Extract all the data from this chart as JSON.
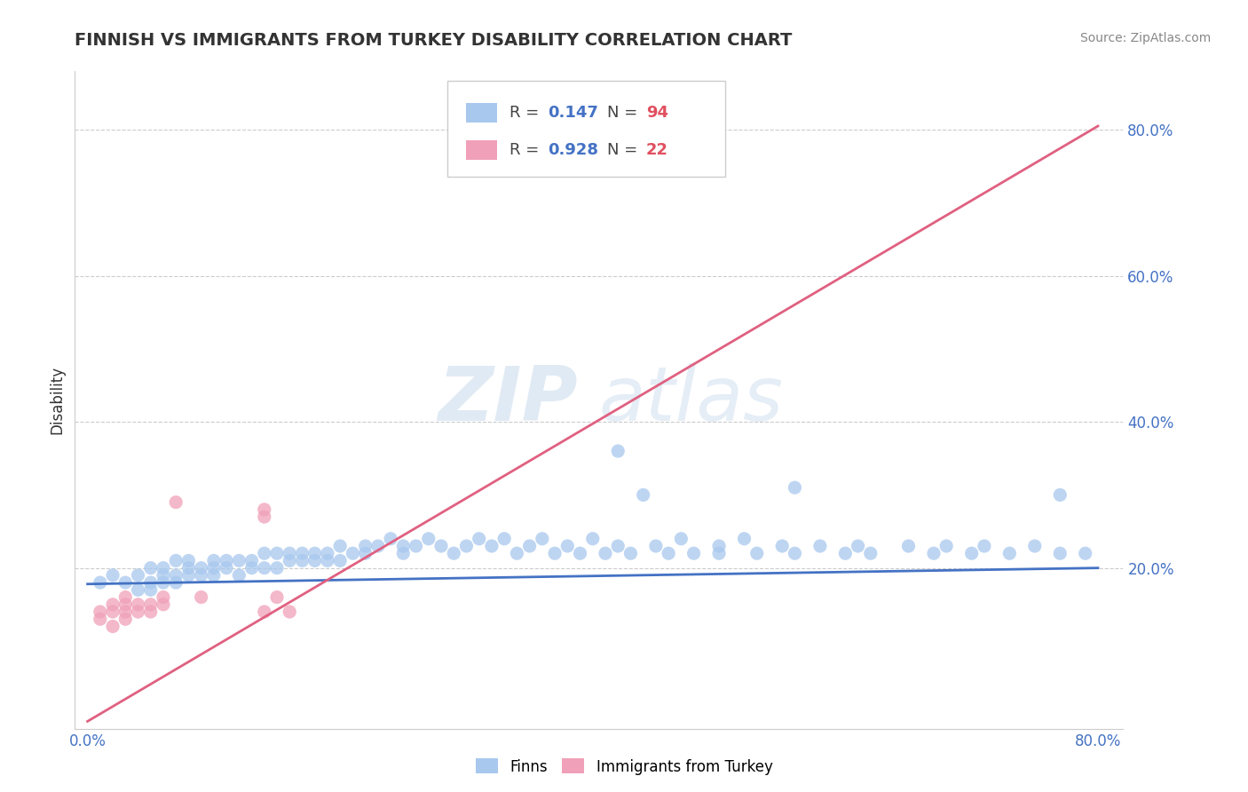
{
  "title": "FINNISH VS IMMIGRANTS FROM TURKEY DISABILITY CORRELATION CHART",
  "source": "Source: ZipAtlas.com",
  "ylabel": "Disability",
  "xlim": [
    -0.01,
    0.82
  ],
  "ylim": [
    -0.02,
    0.88
  ],
  "x_ticks": [
    0.0,
    0.8
  ],
  "x_tick_labels": [
    "0.0%",
    "80.0%"
  ],
  "y_ticks": [
    0.2,
    0.4,
    0.6,
    0.8
  ],
  "y_tick_labels": [
    "20.0%",
    "40.0%",
    "60.0%",
    "80.0%"
  ],
  "grid_color": "#cccccc",
  "background_color": "#ffffff",
  "finns_color": "#a8c8ee",
  "turkey_color": "#f0a0b8",
  "finns_line_color": "#4472c4",
  "turkey_line_color": "#e06080",
  "legend_R_finns": "0.147",
  "legend_N_finns": "94",
  "legend_R_turkey": "0.928",
  "legend_N_turkey": "22",
  "watermark_ZIP": "ZIP",
  "watermark_atlas": "atlas",
  "finns_line_x0": 0.0,
  "finns_line_y0": 0.178,
  "finns_line_x1": 0.8,
  "finns_line_y1": 0.2,
  "turkey_line_x0": 0.0,
  "turkey_line_y0": -0.01,
  "turkey_line_x1": 0.8,
  "turkey_line_y1": 0.805,
  "finns_x": [
    0.01,
    0.02,
    0.03,
    0.04,
    0.04,
    0.05,
    0.05,
    0.05,
    0.06,
    0.06,
    0.06,
    0.07,
    0.07,
    0.07,
    0.08,
    0.08,
    0.08,
    0.09,
    0.09,
    0.1,
    0.1,
    0.1,
    0.11,
    0.11,
    0.12,
    0.12,
    0.13,
    0.13,
    0.14,
    0.14,
    0.15,
    0.15,
    0.16,
    0.16,
    0.17,
    0.17,
    0.18,
    0.18,
    0.19,
    0.19,
    0.2,
    0.2,
    0.21,
    0.22,
    0.22,
    0.23,
    0.24,
    0.25,
    0.25,
    0.26,
    0.27,
    0.28,
    0.29,
    0.3,
    0.31,
    0.32,
    0.33,
    0.34,
    0.35,
    0.36,
    0.37,
    0.38,
    0.39,
    0.4,
    0.41,
    0.42,
    0.43,
    0.45,
    0.46,
    0.47,
    0.48,
    0.5,
    0.5,
    0.52,
    0.53,
    0.55,
    0.56,
    0.58,
    0.6,
    0.61,
    0.62,
    0.65,
    0.67,
    0.68,
    0.7,
    0.71,
    0.73,
    0.75,
    0.77,
    0.79,
    0.42,
    0.44,
    0.56,
    0.77
  ],
  "finns_y": [
    0.18,
    0.19,
    0.18,
    0.19,
    0.17,
    0.18,
    0.2,
    0.17,
    0.19,
    0.18,
    0.2,
    0.19,
    0.21,
    0.18,
    0.2,
    0.19,
    0.21,
    0.2,
    0.19,
    0.21,
    0.2,
    0.19,
    0.21,
    0.2,
    0.21,
    0.19,
    0.21,
    0.2,
    0.22,
    0.2,
    0.22,
    0.2,
    0.22,
    0.21,
    0.22,
    0.21,
    0.22,
    0.21,
    0.22,
    0.21,
    0.23,
    0.21,
    0.22,
    0.23,
    0.22,
    0.23,
    0.24,
    0.23,
    0.22,
    0.23,
    0.24,
    0.23,
    0.22,
    0.23,
    0.24,
    0.23,
    0.24,
    0.22,
    0.23,
    0.24,
    0.22,
    0.23,
    0.22,
    0.24,
    0.22,
    0.23,
    0.22,
    0.23,
    0.22,
    0.24,
    0.22,
    0.23,
    0.22,
    0.24,
    0.22,
    0.23,
    0.22,
    0.23,
    0.22,
    0.23,
    0.22,
    0.23,
    0.22,
    0.23,
    0.22,
    0.23,
    0.22,
    0.23,
    0.22,
    0.22,
    0.36,
    0.3,
    0.31,
    0.3
  ],
  "turkey_x": [
    0.01,
    0.01,
    0.02,
    0.02,
    0.02,
    0.03,
    0.03,
    0.03,
    0.03,
    0.04,
    0.04,
    0.05,
    0.05,
    0.06,
    0.06,
    0.07,
    0.09,
    0.14,
    0.14,
    0.14,
    0.15,
    0.16
  ],
  "turkey_y": [
    0.14,
    0.13,
    0.15,
    0.14,
    0.12,
    0.16,
    0.15,
    0.14,
    0.13,
    0.15,
    0.14,
    0.15,
    0.14,
    0.16,
    0.15,
    0.29,
    0.16,
    0.28,
    0.27,
    0.14,
    0.16,
    0.14
  ]
}
